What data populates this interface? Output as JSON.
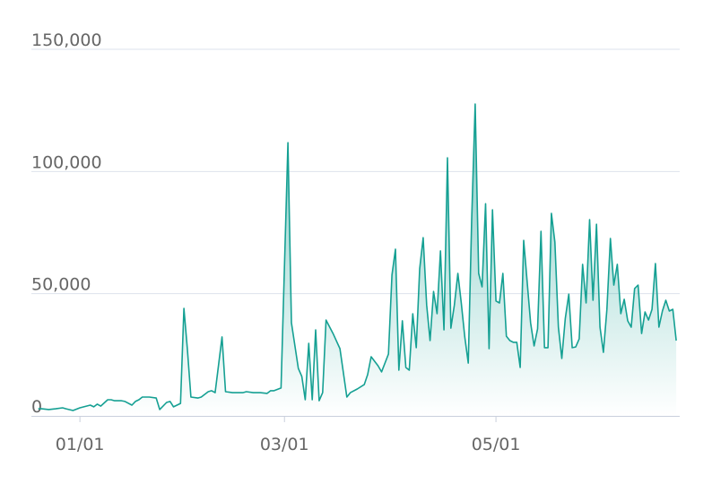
{
  "chart_data": {
    "type": "area",
    "x": [
      "12/20",
      "12/21",
      "12/23",
      "12/25",
      "12/27",
      "12/28",
      "12/30",
      "01/01",
      "01/04",
      "01/05",
      "01/06",
      "01/07",
      "01/09",
      "01/10",
      "01/11",
      "01/13",
      "01/14",
      "01/16",
      "01/17",
      "01/18",
      "01/19",
      "01/21",
      "01/23",
      "01/24",
      "01/26",
      "01/27",
      "01/28",
      "01/29",
      "01/30",
      "01/31",
      "02/01",
      "02/02",
      "02/04",
      "02/05",
      "02/07",
      "02/08",
      "02/09",
      "02/11",
      "02/12",
      "02/14",
      "02/15",
      "02/17",
      "02/18",
      "02/20",
      "02/22",
      "02/24",
      "02/25",
      "02/26",
      "02/28",
      "03/02",
      "03/03",
      "03/05",
      "03/06",
      "03/07",
      "03/08",
      "03/09",
      "03/10",
      "03/11",
      "03/12",
      "03/13",
      "03/15",
      "03/17",
      "03/19",
      "03/20",
      "03/22",
      "03/24",
      "03/25",
      "03/26",
      "03/28",
      "03/29",
      "03/31",
      "04/01",
      "04/02",
      "04/03",
      "04/04",
      "04/05",
      "04/06",
      "04/07",
      "04/08",
      "04/09",
      "04/10",
      "04/11",
      "04/12",
      "04/13",
      "04/14",
      "04/15",
      "04/16",
      "04/17",
      "04/18",
      "04/19",
      "04/20",
      "04/21",
      "04/22",
      "04/23",
      "04/24",
      "04/25",
      "04/26",
      "04/27",
      "04/28",
      "04/29",
      "04/30",
      "05/01",
      "05/02",
      "05/03",
      "05/04",
      "05/05",
      "05/06",
      "05/07",
      "05/08",
      "05/09",
      "05/11",
      "05/12",
      "05/13",
      "05/14",
      "05/15",
      "05/16",
      "05/17",
      "05/18",
      "05/19",
      "05/20",
      "05/21",
      "05/22",
      "05/23",
      "05/24",
      "05/25",
      "05/26",
      "05/27",
      "05/28",
      "05/29",
      "05/30",
      "05/31",
      "06/01",
      "06/02",
      "06/03",
      "06/04",
      "06/05",
      "06/06",
      "06/07",
      "06/08",
      "06/09",
      "06/10",
      "06/11",
      "06/12",
      "06/13",
      "06/14",
      "06/15",
      "06/16",
      "06/17",
      "06/18",
      "06/19",
      "06/20",
      "06/21",
      "06/22"
    ],
    "values": [
      2900,
      2900,
      2600,
      2900,
      3300,
      2900,
      2200,
      3300,
      4400,
      3700,
      4800,
      4000,
      6600,
      6600,
      6200,
      6200,
      5900,
      4400,
      5900,
      6600,
      7700,
      7700,
      7300,
      2600,
      5500,
      5900,
      3700,
      4400,
      5100,
      44000,
      27100,
      7700,
      7300,
      7700,
      9900,
      10300,
      9500,
      32300,
      9900,
      9500,
      9500,
      9500,
      9900,
      9500,
      9500,
      9200,
      10300,
      10300,
      11400,
      111800,
      38100,
      19400,
      16100,
      6600,
      29700,
      6600,
      35200,
      6200,
      9500,
      39200,
      33700,
      27500,
      7700,
      9500,
      11000,
      12800,
      16900,
      24200,
      20500,
      18000,
      25300,
      57600,
      68200,
      18700,
      38900,
      19800,
      18700,
      41800,
      27900,
      60100,
      72900,
      45400,
      30800,
      50900,
      41800,
      67500,
      35200,
      105600,
      35900,
      45400,
      58300,
      46200,
      32300,
      21600,
      80300,
      127600,
      58300,
      52800,
      86800,
      27500,
      84300,
      47000,
      46200,
      58300,
      32600,
      30800,
      30100,
      30100,
      19800,
      71800,
      38100,
      28600,
      35600,
      75500,
      27900,
      27900,
      82900,
      71100,
      36300,
      23500,
      39900,
      49800,
      27900,
      28200,
      31500,
      62000,
      46200,
      80300,
      47300,
      78400,
      36300,
      26000,
      43600,
      72600,
      53500,
      62000,
      41800,
      47700,
      38900,
      36300,
      52100,
      53500,
      33700,
      42500,
      39200,
      43600,
      62300,
      36300,
      42900,
      47300,
      42900,
      43600,
      30800
    ],
    "color": "#15a093",
    "xlim": [
      "12/18",
      "06/23"
    ],
    "xticks": [
      "01/01",
      "03/01",
      "05/01"
    ],
    "ylim": [
      0,
      150000
    ],
    "yticks": [
      0,
      {
        "value": 50000,
        "label": "50,000"
      },
      {
        "value": 100000,
        "label": "100,000"
      },
      {
        "value": 150000,
        "label": "150,000"
      }
    ],
    "grid": true
  }
}
